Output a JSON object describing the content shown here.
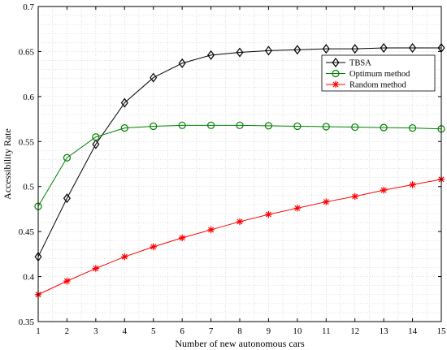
{
  "chart_data": {
    "type": "line",
    "title": "",
    "xlabel": "Number of new autonomous cars",
    "ylabel": "Accessibility Rate",
    "x": [
      1,
      2,
      3,
      4,
      5,
      6,
      7,
      8,
      9,
      10,
      11,
      12,
      13,
      14,
      15
    ],
    "xlim": [
      1,
      15
    ],
    "ylim": [
      0.35,
      0.7
    ],
    "xticks": [
      1,
      2,
      3,
      4,
      5,
      6,
      7,
      8,
      9,
      10,
      11,
      12,
      13,
      14,
      15
    ],
    "yticks": [
      0.35,
      0.4,
      0.45,
      0.5,
      0.55,
      0.6,
      0.65,
      0.7
    ],
    "grid": true,
    "legend_position": "upper-right",
    "series": [
      {
        "name": "TBSA",
        "color": "#000000",
        "marker": "diamond",
        "values": [
          0.422,
          0.487,
          0.547,
          0.593,
          0.621,
          0.637,
          0.646,
          0.649,
          0.651,
          0.652,
          0.653,
          0.653,
          0.654,
          0.654,
          0.654
        ]
      },
      {
        "name": "Optimum method",
        "color": "#008000",
        "marker": "circle",
        "values": [
          0.478,
          0.532,
          0.555,
          0.565,
          0.567,
          0.568,
          0.568,
          0.568,
          0.5675,
          0.567,
          0.5665,
          0.566,
          0.5655,
          0.565,
          0.564
        ]
      },
      {
        "name": "Random method",
        "color": "#ff0000",
        "marker": "star",
        "values": [
          0.38,
          0.395,
          0.409,
          0.422,
          0.433,
          0.443,
          0.452,
          0.461,
          0.469,
          0.476,
          0.483,
          0.489,
          0.496,
          0.502,
          0.508
        ]
      }
    ]
  }
}
